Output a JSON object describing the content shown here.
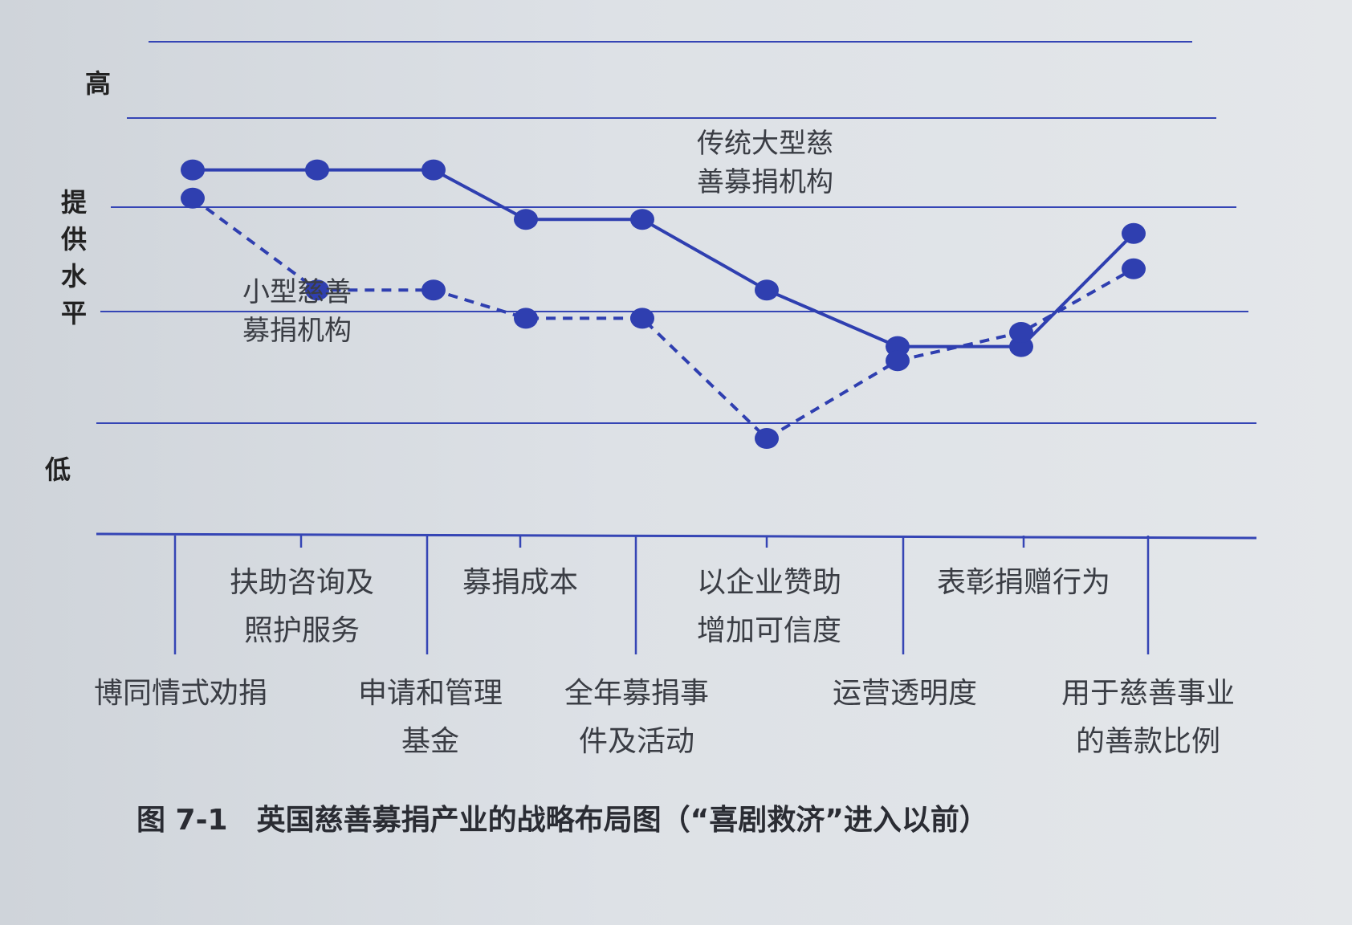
{
  "caption": "图 7-1　英国慈善募捐产业的战略布局图（“喜剧救济”进入以前）",
  "colors": {
    "line": "#2f3fb0",
    "grid": "#3545b5",
    "text": "#3a3d44"
  },
  "chart_data": {
    "type": "line",
    "ylabel": "提供水平",
    "yticks": {
      "high": "高",
      "low": "低"
    },
    "categories": [
      "博同情式劝捐",
      "扶助咨询及照护服务",
      "申请和管理基金",
      "募捐成本",
      "全年募捐事件及活动",
      "以企业赞助增加可信度",
      "运营透明度",
      "表彰捐赠行为",
      "用于慈善事业的善款比例"
    ],
    "category_lines": [
      [
        "博同情式劝捐"
      ],
      [
        "扶助咨询及",
        "照护服务"
      ],
      [
        "申请和管理",
        "基金"
      ],
      [
        "募捐成本"
      ],
      [
        "全年募捐事",
        "件及活动"
      ],
      [
        "以企业赞助",
        "增加可信度"
      ],
      [
        "运营透明度"
      ],
      [
        "表彰捐赠行为"
      ],
      [
        "用于慈善事业",
        "的善款比例"
      ]
    ],
    "ylim": [
      0,
      5
    ],
    "grid": true,
    "series": [
      {
        "name": "传统大型慈善募捐机构",
        "name_lines": [
          "传统大型慈",
          "善募捐机构"
        ],
        "style": "solid",
        "values": [
          4.3,
          4.3,
          4.3,
          3.6,
          3.6,
          2.6,
          1.8,
          1.8,
          3.4
        ]
      },
      {
        "name": "小型慈善募捐机构",
        "name_lines": [
          "小型慈善",
          "募捐机构"
        ],
        "style": "dashed",
        "values": [
          3.9,
          2.6,
          2.6,
          2.2,
          2.2,
          0.5,
          1.6,
          2.0,
          2.9
        ]
      }
    ]
  }
}
